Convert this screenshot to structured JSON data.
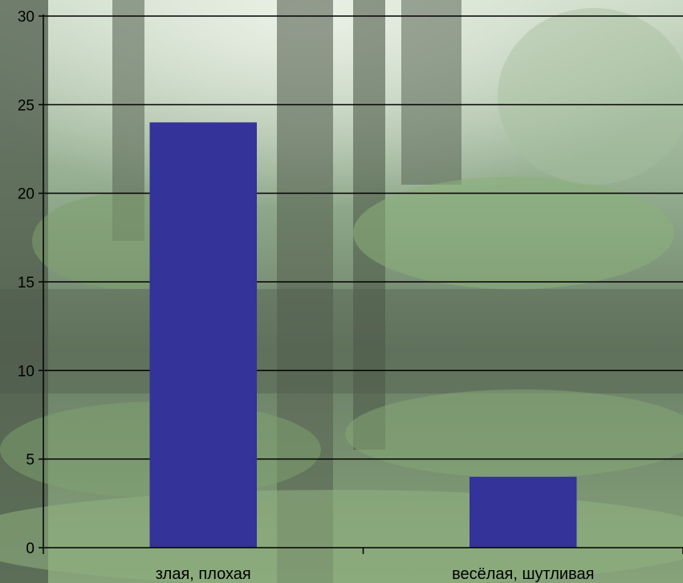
{
  "chart_data": {
    "type": "bar",
    "categories": [
      "злая, плохая",
      "весёлая, шутливая"
    ],
    "values": [
      24,
      4
    ],
    "ylim": [
      0,
      30
    ],
    "yticks": [
      0,
      5,
      10,
      15,
      20,
      25,
      30
    ],
    "grid": true,
    "legend": "none",
    "title": "",
    "xlabel": "",
    "ylabel": ""
  },
  "colors": {
    "bar": "#333399",
    "gridline": "#000000"
  },
  "background": "forest photo"
}
